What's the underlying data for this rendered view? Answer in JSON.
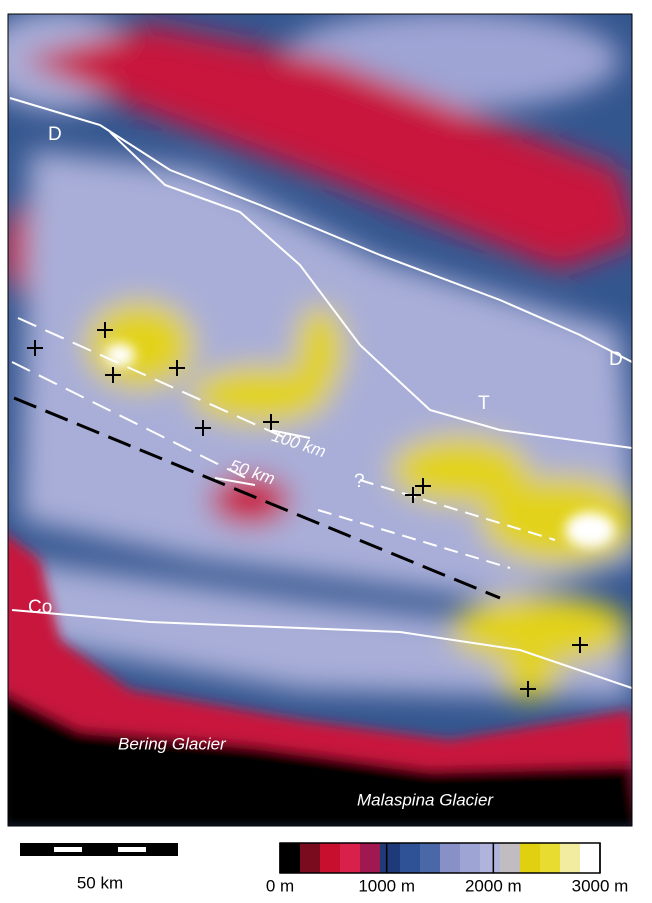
{
  "labels": [
    "D",
    "D",
    "T",
    "Co",
    "100 km",
    "50 km",
    "?"
  ],
  "places": [
    "Bering Glacier",
    "Malaspina Glacier"
  ],
  "scale_bar": {
    "label": "50 km"
  },
  "colorbar": {
    "range": [
      0,
      3000
    ],
    "ticks": [
      {
        "value": 0,
        "label": "0 m"
      },
      {
        "value": 1000,
        "label": "1000 m"
      },
      {
        "value": 2000,
        "label": "2000 m"
      },
      {
        "value": 3000,
        "label": "3000 m"
      }
    ],
    "colors": [
      "#000000",
      "#7a0a1e",
      "#c8102e",
      "#d8204a",
      "#a01850",
      "#1e3a78",
      "#2f5296",
      "#4a68a8",
      "#8890c8",
      "#9ea4d4",
      "#b0b4dc",
      "#c0bcc0",
      "#e0d010",
      "#e8dc30",
      "#f2eca0",
      "#ffffff"
    ]
  }
}
